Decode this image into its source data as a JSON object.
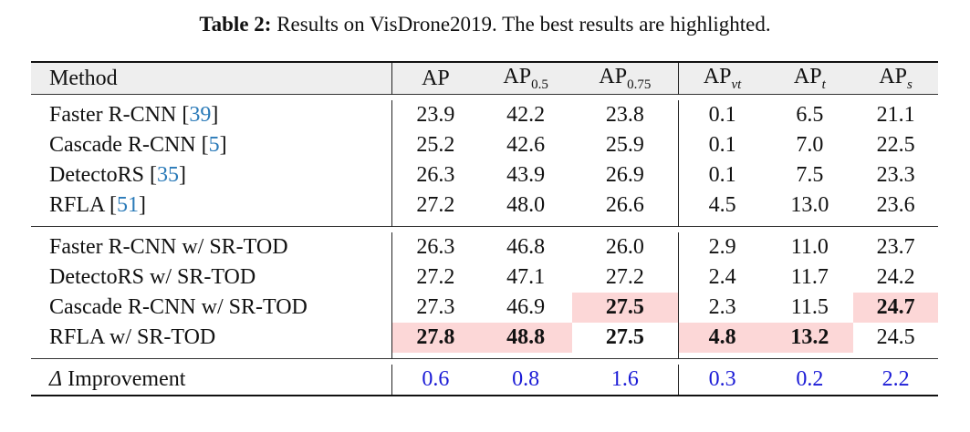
{
  "caption": {
    "label": "Table 2:",
    "text": " Results on VisDrone2019. The best results are highlighted."
  },
  "header": {
    "method": "Method",
    "cols": [
      {
        "base": "AP",
        "sub": ""
      },
      {
        "base": "AP",
        "sub": "0.5"
      },
      {
        "base": "AP",
        "sub": "0.75"
      },
      {
        "base": "AP",
        "sub": "vt"
      },
      {
        "base": "AP",
        "sub": "t"
      },
      {
        "base": "AP",
        "sub": "s"
      }
    ]
  },
  "group1": [
    {
      "name": "Faster R-CNN ",
      "ref": "39",
      "values": [
        "23.9",
        "42.2",
        "23.8",
        "0.1",
        "6.5",
        "21.1"
      ]
    },
    {
      "name": "Cascade R-CNN ",
      "ref": "5",
      "values": [
        "25.2",
        "42.6",
        "25.9",
        "0.1",
        "7.0",
        "22.5"
      ]
    },
    {
      "name": "DetectoRS ",
      "ref": "35",
      "values": [
        "26.3",
        "43.9",
        "26.9",
        "0.1",
        "7.5",
        "23.3"
      ]
    },
    {
      "name": "RFLA ",
      "ref": "51",
      "values": [
        "27.2",
        "48.0",
        "26.6",
        "4.5",
        "13.0",
        "23.6"
      ]
    }
  ],
  "group2": [
    {
      "name": "Faster R-CNN w/ SR-TOD",
      "values": [
        "26.3",
        "46.8",
        "26.0",
        "2.9",
        "11.0",
        "23.7"
      ]
    },
    {
      "name": "DetectoRS w/ SR-TOD",
      "values": [
        "27.2",
        "47.1",
        "27.2",
        "2.4",
        "11.7",
        "24.2"
      ]
    },
    {
      "name": "Cascade R-CNN w/ SR-TOD",
      "values": [
        "27.3",
        "46.9",
        "27.5",
        "2.3",
        "11.5",
        "24.7"
      ]
    },
    {
      "name": "RFLA w/ SR-TOD",
      "values": [
        "27.8",
        "48.8",
        "27.5",
        "4.8",
        "13.2",
        "24.5"
      ]
    }
  ],
  "improvement": {
    "symbol": "Δ",
    "label": " Improvement",
    "values": [
      "0.6",
      "0.8",
      "1.6",
      "0.3",
      "0.2",
      "2.2"
    ]
  },
  "colors": {
    "highlight": "#fcd7d7",
    "improvement_text": "#1b1bd6",
    "citation": "#2a7ab8",
    "header_bg": "#eeeeee"
  }
}
